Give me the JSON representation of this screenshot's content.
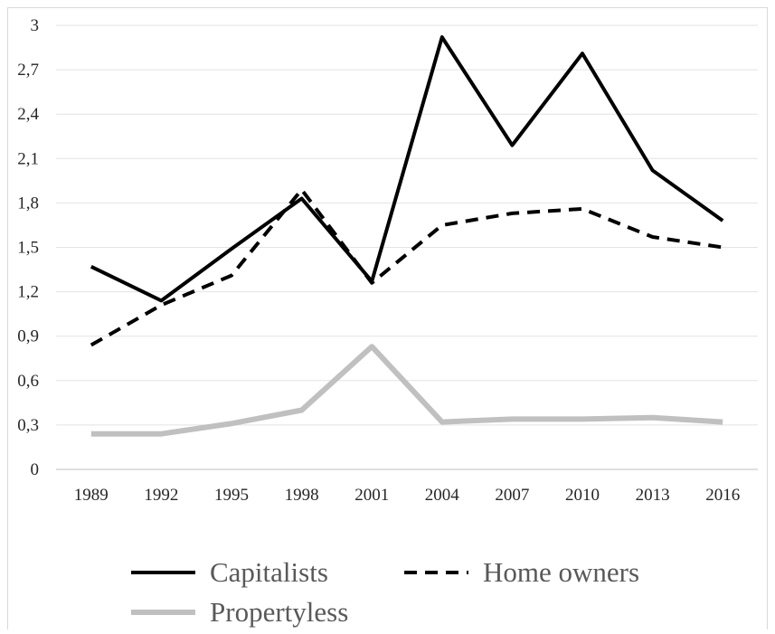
{
  "chart_data": {
    "type": "line",
    "title": "",
    "xlabel": "",
    "ylabel": "",
    "categories": [
      "1989",
      "1992",
      "1995",
      "1998",
      "2001",
      "2004",
      "2007",
      "2010",
      "2013",
      "2016"
    ],
    "ylim": [
      0,
      3
    ],
    "yticks": [
      "0",
      "0,3",
      "0,6",
      "0,9",
      "1,2",
      "1,5",
      "1,8",
      "2,1",
      "2,4",
      "2,7",
      "3"
    ],
    "grid": "horizontal",
    "legend_position": "bottom",
    "series": [
      {
        "name": "Capitalists",
        "style": "solid",
        "color": "#000000",
        "values": [
          1.37,
          1.14,
          1.49,
          1.83,
          1.27,
          2.92,
          2.19,
          2.81,
          2.02,
          1.68
        ]
      },
      {
        "name": "Home owners",
        "style": "dashed",
        "color": "#000000",
        "values": [
          0.84,
          1.11,
          1.31,
          1.89,
          1.26,
          1.65,
          1.73,
          1.76,
          1.57,
          1.5
        ]
      },
      {
        "name": "Propertyless",
        "style": "solid",
        "color": "#c0c0c0",
        "values": [
          0.24,
          0.24,
          0.31,
          0.4,
          0.83,
          0.32,
          0.34,
          0.34,
          0.35,
          0.32
        ]
      }
    ]
  }
}
